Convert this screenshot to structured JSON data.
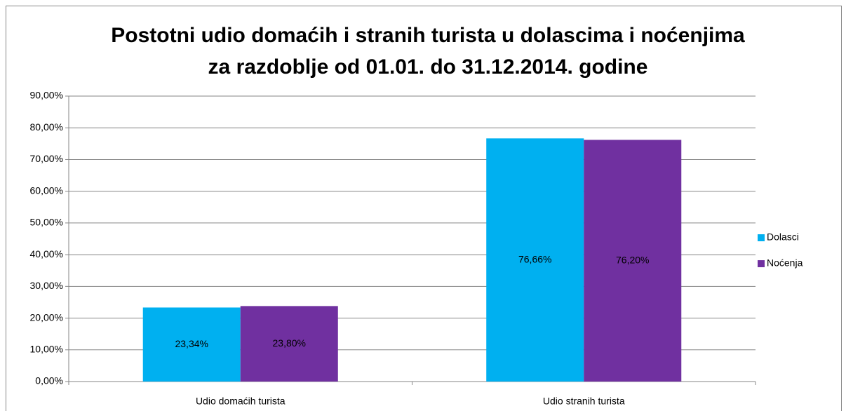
{
  "chart_data": {
    "type": "bar",
    "title": [
      "Postotni udio domaćih i stranih turista u dolascima i noćenjima",
      "za razdoblje od 01.01. do 31.12.2014. godine"
    ],
    "categories": [
      "Udio domaćih turista",
      "Udio stranih turista"
    ],
    "series": [
      {
        "name": "Dolasci",
        "color": "#00b0f0",
        "values": [
          23.34,
          76.66
        ],
        "value_labels": [
          "23,34%",
          "76,66%"
        ]
      },
      {
        "name": "Noćenja",
        "color": "#7030a0",
        "values": [
          23.8,
          76.2
        ],
        "value_labels": [
          "23,80%",
          "76,20%"
        ]
      }
    ],
    "ylim": [
      0,
      90
    ],
    "yticks": [
      {
        "value": 0,
        "label": "0,00%"
      },
      {
        "value": 10,
        "label": "10,00%"
      },
      {
        "value": 20,
        "label": "20,00%"
      },
      {
        "value": 30,
        "label": "30,00%"
      },
      {
        "value": 40,
        "label": "40,00%"
      },
      {
        "value": 50,
        "label": "50,00%"
      },
      {
        "value": 60,
        "label": "60,00%"
      },
      {
        "value": 70,
        "label": "70,00%"
      },
      {
        "value": 80,
        "label": "80,00%"
      },
      {
        "value": 90,
        "label": "90,00%"
      }
    ],
    "grid": true,
    "legend": "right"
  }
}
